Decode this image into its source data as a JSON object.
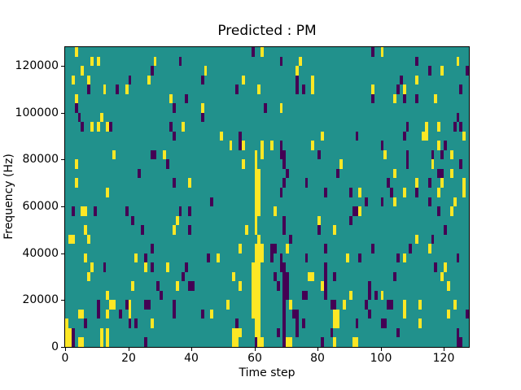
{
  "chart_data": {
    "type": "heatmap",
    "title": "Predicted : PM",
    "xlabel": "Time step",
    "ylabel": "Frequency (Hz)",
    "x_range": [
      0,
      128
    ],
    "y_range": [
      0,
      128000
    ],
    "x_ticks": [
      0,
      20,
      40,
      60,
      80,
      100,
      120
    ],
    "y_ticks": [
      0,
      20000,
      40000,
      60000,
      80000,
      100000,
      120000
    ],
    "grid_cols": 128,
    "grid_rows": 32,
    "row_origin": "top",
    "grid": "off",
    "legend": "none",
    "colors": {
      "background_mid": "#21918c",
      "high": "#fde725",
      "low": "#440154",
      "spine": "#000000"
    },
    "cells_high": [
      [
        3,
        0
      ],
      [
        62,
        0
      ],
      [
        100,
        0
      ],
      [
        8,
        1
      ],
      [
        10,
        1
      ],
      [
        28,
        1
      ],
      [
        74,
        1
      ],
      [
        124,
        1
      ],
      [
        5,
        2
      ],
      [
        44,
        2
      ],
      [
        73,
        2
      ],
      [
        119,
        2
      ],
      [
        2,
        3
      ],
      [
        7,
        3
      ],
      [
        26,
        3
      ],
      [
        56,
        3
      ],
      [
        78,
        3
      ],
      [
        111,
        3
      ],
      [
        12,
        4
      ],
      [
        19,
        4
      ],
      [
        61,
        4
      ],
      [
        78,
        4
      ],
      [
        97,
        4
      ],
      [
        107,
        4
      ],
      [
        3,
        5
      ],
      [
        33,
        5
      ],
      [
        104,
        5
      ],
      [
        117,
        5
      ],
      [
        43,
        6
      ],
      [
        68,
        6
      ],
      [
        11,
        7
      ],
      [
        8,
        8
      ],
      [
        10,
        8
      ],
      [
        13,
        8
      ],
      [
        37,
        8
      ],
      [
        114,
        8
      ],
      [
        118,
        8
      ],
      [
        49,
        9
      ],
      [
        81,
        9
      ],
      [
        113,
        9
      ],
      [
        114,
        9
      ],
      [
        126,
        9
      ],
      [
        52,
        10
      ],
      [
        56,
        10
      ],
      [
        62,
        10
      ],
      [
        65,
        10
      ],
      [
        78,
        10
      ],
      [
        118,
        10
      ],
      [
        15,
        11
      ],
      [
        31,
        11
      ],
      [
        60,
        11
      ],
      [
        62,
        11
      ],
      [
        101,
        11
      ],
      [
        122,
        11
      ],
      [
        3,
        12
      ],
      [
        56,
        12
      ],
      [
        60,
        12
      ],
      [
        87,
        12
      ],
      [
        116,
        12
      ],
      [
        60,
        13
      ],
      [
        61,
        13
      ],
      [
        104,
        13
      ],
      [
        122,
        13
      ],
      [
        3,
        14
      ],
      [
        39,
        14
      ],
      [
        60,
        14
      ],
      [
        61,
        14
      ],
      [
        111,
        14
      ],
      [
        119,
        14
      ],
      [
        126,
        14
      ],
      [
        13,
        15
      ],
      [
        60,
        15
      ],
      [
        61,
        15
      ],
      [
        93,
        15
      ],
      [
        107,
        15
      ],
      [
        118,
        15
      ],
      [
        126,
        15
      ],
      [
        60,
        16
      ],
      [
        61,
        16
      ],
      [
        104,
        16
      ],
      [
        123,
        16
      ],
      [
        5,
        17
      ],
      [
        6,
        17
      ],
      [
        60,
        17
      ],
      [
        61,
        17
      ],
      [
        66,
        17
      ],
      [
        93,
        17
      ],
      [
        122,
        17
      ],
      [
        35,
        18
      ],
      [
        60,
        18
      ],
      [
        80,
        18
      ],
      [
        6,
        19
      ],
      [
        34,
        19
      ],
      [
        57,
        19
      ],
      [
        60,
        19
      ],
      [
        85,
        19
      ],
      [
        1,
        20
      ],
      [
        2,
        20
      ],
      [
        7,
        20
      ],
      [
        61,
        20
      ],
      [
        111,
        20
      ],
      [
        55,
        21
      ],
      [
        60,
        21
      ],
      [
        61,
        21
      ],
      [
        62,
        21
      ],
      [
        70,
        21
      ],
      [
        115,
        21
      ],
      [
        6,
        22
      ],
      [
        22,
        22
      ],
      [
        48,
        22
      ],
      [
        60,
        22
      ],
      [
        61,
        22
      ],
      [
        62,
        22
      ],
      [
        89,
        22
      ],
      [
        107,
        22
      ],
      [
        8,
        23
      ],
      [
        25,
        23
      ],
      [
        32,
        23
      ],
      [
        59,
        23
      ],
      [
        60,
        23
      ],
      [
        61,
        23
      ],
      [
        120,
        23
      ],
      [
        7,
        24
      ],
      [
        53,
        24
      ],
      [
        59,
        24
      ],
      [
        60,
        24
      ],
      [
        61,
        24
      ],
      [
        77,
        24
      ],
      [
        78,
        24
      ],
      [
        119,
        24
      ],
      [
        21,
        25
      ],
      [
        35,
        25
      ],
      [
        55,
        25
      ],
      [
        59,
        25
      ],
      [
        60,
        25
      ],
      [
        61,
        25
      ],
      [
        81,
        25
      ],
      [
        121,
        25
      ],
      [
        13,
        26
      ],
      [
        59,
        26
      ],
      [
        60,
        26
      ],
      [
        61,
        26
      ],
      [
        90,
        26
      ],
      [
        100,
        26
      ],
      [
        14,
        27
      ],
      [
        15,
        27
      ],
      [
        20,
        27
      ],
      [
        51,
        27
      ],
      [
        59,
        27
      ],
      [
        60,
        27
      ],
      [
        61,
        27
      ],
      [
        71,
        27
      ],
      [
        88,
        27
      ],
      [
        107,
        27
      ],
      [
        112,
        27
      ],
      [
        123,
        27
      ],
      [
        4,
        28
      ],
      [
        5,
        28
      ],
      [
        13,
        28
      ],
      [
        20,
        28
      ],
      [
        46,
        28
      ],
      [
        59,
        28
      ],
      [
        60,
        28
      ],
      [
        61,
        28
      ],
      [
        85,
        28
      ],
      [
        86,
        28
      ],
      [
        107,
        28
      ],
      [
        121,
        28
      ],
      [
        0,
        29
      ],
      [
        27,
        29
      ],
      [
        60,
        29
      ],
      [
        61,
        29
      ],
      [
        85,
        29
      ],
      [
        86,
        29
      ],
      [
        112,
        29
      ],
      [
        0,
        30
      ],
      [
        1,
        30
      ],
      [
        11,
        30
      ],
      [
        13,
        30
      ],
      [
        53,
        30
      ],
      [
        54,
        30
      ],
      [
        55,
        30
      ],
      [
        60,
        30
      ],
      [
        61,
        30
      ],
      [
        0,
        31
      ],
      [
        1,
        31
      ],
      [
        4,
        31
      ],
      [
        5,
        31
      ],
      [
        11,
        31
      ],
      [
        13,
        31
      ],
      [
        53,
        31
      ],
      [
        54,
        31
      ],
      [
        61,
        31
      ],
      [
        62,
        31
      ],
      [
        70,
        31
      ],
      [
        71,
        31
      ],
      [
        85,
        31
      ],
      [
        91,
        31
      ],
      [
        92,
        31
      ]
    ],
    "cells_low": [
      [
        59,
        0
      ],
      [
        97,
        0
      ],
      [
        36,
        1
      ],
      [
        68,
        1
      ],
      [
        111,
        1
      ],
      [
        27,
        2
      ],
      [
        115,
        2
      ],
      [
        127,
        2
      ],
      [
        20,
        3
      ],
      [
        43,
        3
      ],
      [
        73,
        3
      ],
      [
        106,
        3
      ],
      [
        7,
        4
      ],
      [
        16,
        4
      ],
      [
        54,
        4
      ],
      [
        73,
        4
      ],
      [
        75,
        4
      ],
      [
        105,
        4
      ],
      [
        125,
        4
      ],
      [
        38,
        5
      ],
      [
        97,
        5
      ],
      [
        107,
        5
      ],
      [
        111,
        5
      ],
      [
        3,
        6
      ],
      [
        34,
        6
      ],
      [
        63,
        6
      ],
      [
        4,
        7
      ],
      [
        43,
        7
      ],
      [
        124,
        7
      ],
      [
        5,
        8
      ],
      [
        14,
        8
      ],
      [
        33,
        8
      ],
      [
        108,
        8
      ],
      [
        123,
        8
      ],
      [
        125,
        8
      ],
      [
        34,
        9
      ],
      [
        55,
        9
      ],
      [
        92,
        9
      ],
      [
        107,
        9
      ],
      [
        55,
        10
      ],
      [
        68,
        10
      ],
      [
        100,
        10
      ],
      [
        120,
        10
      ],
      [
        27,
        11
      ],
      [
        28,
        11
      ],
      [
        68,
        11
      ],
      [
        69,
        11
      ],
      [
        80,
        11
      ],
      [
        108,
        11
      ],
      [
        116,
        11
      ],
      [
        119,
        11
      ],
      [
        32,
        12
      ],
      [
        69,
        12
      ],
      [
        108,
        12
      ],
      [
        125,
        12
      ],
      [
        23,
        13
      ],
      [
        70,
        13
      ],
      [
        86,
        13
      ],
      [
        118,
        13
      ],
      [
        119,
        13
      ],
      [
        34,
        14
      ],
      [
        69,
        14
      ],
      [
        76,
        14
      ],
      [
        102,
        14
      ],
      [
        115,
        14
      ],
      [
        68,
        15
      ],
      [
        82,
        15
      ],
      [
        90,
        15
      ],
      [
        103,
        15
      ],
      [
        111,
        15
      ],
      [
        46,
        16
      ],
      [
        95,
        16
      ],
      [
        100,
        16
      ],
      [
        115,
        16
      ],
      [
        2,
        17
      ],
      [
        9,
        17
      ],
      [
        19,
        17
      ],
      [
        36,
        17
      ],
      [
        39,
        17
      ],
      [
        91,
        17
      ],
      [
        92,
        17
      ],
      [
        118,
        17
      ],
      [
        21,
        18
      ],
      [
        69,
        18
      ],
      [
        90,
        18
      ],
      [
        24,
        19
      ],
      [
        39,
        19
      ],
      [
        69,
        19
      ],
      [
        80,
        19
      ],
      [
        120,
        19
      ],
      [
        71,
        20
      ],
      [
        116,
        20
      ],
      [
        27,
        21
      ],
      [
        65,
        21
      ],
      [
        66,
        21
      ],
      [
        82,
        21
      ],
      [
        97,
        21
      ],
      [
        109,
        21
      ],
      [
        25,
        22
      ],
      [
        45,
        22
      ],
      [
        65,
        22
      ],
      [
        68,
        22
      ],
      [
        76,
        22
      ],
      [
        93,
        22
      ],
      [
        105,
        22
      ],
      [
        124,
        22
      ],
      [
        12,
        23
      ],
      [
        27,
        23
      ],
      [
        38,
        23
      ],
      [
        68,
        23
      ],
      [
        69,
        23
      ],
      [
        82,
        23
      ],
      [
        117,
        23
      ],
      [
        37,
        24
      ],
      [
        66,
        24
      ],
      [
        69,
        24
      ],
      [
        70,
        24
      ],
      [
        82,
        24
      ],
      [
        85,
        24
      ],
      [
        104,
        24
      ],
      [
        29,
        25
      ],
      [
        39,
        25
      ],
      [
        40,
        25
      ],
      [
        67,
        25
      ],
      [
        69,
        25
      ],
      [
        70,
        25
      ],
      [
        82,
        25
      ],
      [
        96,
        25
      ],
      [
        30,
        26
      ],
      [
        69,
        26
      ],
      [
        70,
        26
      ],
      [
        75,
        26
      ],
      [
        76,
        26
      ],
      [
        82,
        26
      ],
      [
        96,
        26
      ],
      [
        98,
        26
      ],
      [
        10,
        27
      ],
      [
        19,
        27
      ],
      [
        25,
        27
      ],
      [
        26,
        27
      ],
      [
        34,
        27
      ],
      [
        69,
        27
      ],
      [
        84,
        27
      ],
      [
        85,
        27
      ],
      [
        95,
        27
      ],
      [
        102,
        27
      ],
      [
        103,
        27
      ],
      [
        10,
        28
      ],
      [
        17,
        28
      ],
      [
        34,
        28
      ],
      [
        43,
        28
      ],
      [
        69,
        28
      ],
      [
        72,
        28
      ],
      [
        73,
        28
      ],
      [
        96,
        28
      ],
      [
        127,
        28
      ],
      [
        6,
        29
      ],
      [
        20,
        29
      ],
      [
        22,
        29
      ],
      [
        54,
        29
      ],
      [
        69,
        29
      ],
      [
        73,
        29
      ],
      [
        75,
        29
      ],
      [
        92,
        29
      ],
      [
        100,
        29
      ],
      [
        101,
        29
      ],
      [
        2,
        30
      ],
      [
        67,
        30
      ],
      [
        69,
        30
      ],
      [
        73,
        30
      ],
      [
        84,
        30
      ],
      [
        105,
        30
      ],
      [
        124,
        30
      ],
      [
        2,
        31
      ],
      [
        25,
        31
      ],
      [
        60,
        31
      ],
      [
        69,
        31
      ],
      [
        81,
        31
      ],
      [
        124,
        31
      ],
      [
        125,
        31
      ]
    ]
  }
}
